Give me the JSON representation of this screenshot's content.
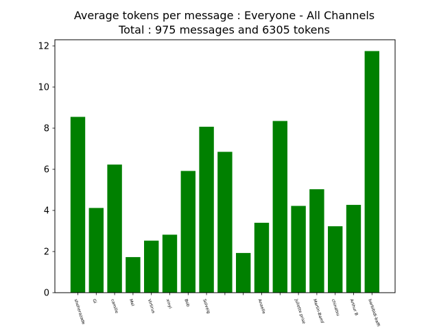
{
  "chart_data": {
    "type": "bar",
    "title": "Average tokens per message : Everyone - All Channels",
    "subtitle": "Total : 975 messages and 6305 tokens",
    "xlabel": "",
    "ylabel": "",
    "ylim": [
      0,
      12.3
    ],
    "yticks": [
      0,
      2,
      4,
      6,
      8,
      10,
      12
    ],
    "categories": [
      "sheherazade",
      "Gi",
      "camille",
      "Mel",
      "Virtirus",
      "xinyi",
      "Bob",
      "Solveig",
      "",
      "",
      "Anaelle",
      "",
      "Juliette prise",
      "Martin-Bamf",
      "chinatsu",
      "Arthur B",
      "barbibidi-baffi"
    ],
    "values": [
      8.55,
      4.12,
      6.23,
      1.73,
      2.53,
      2.82,
      5.92,
      8.07,
      6.85,
      1.93,
      3.4,
      8.35,
      4.22,
      5.03,
      3.23,
      4.27,
      11.75
    ],
    "bar_color": "#008000",
    "grid": false,
    "legend": "none"
  }
}
